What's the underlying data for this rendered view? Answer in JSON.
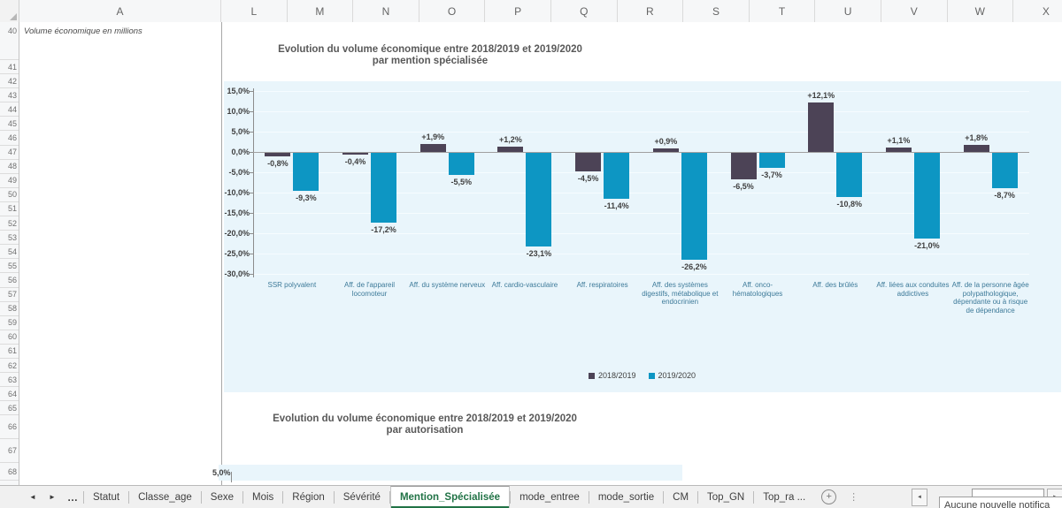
{
  "spreadsheet": {
    "columns": [
      "A",
      "L",
      "M",
      "N",
      "O",
      "P",
      "Q",
      "R",
      "S",
      "T",
      "U",
      "V",
      "W",
      "X"
    ],
    "rows": [
      40,
      41,
      42,
      43,
      44,
      45,
      46,
      47,
      48,
      49,
      50,
      51,
      52,
      53,
      54,
      55,
      56,
      57,
      58,
      59,
      60,
      61,
      62,
      63,
      64,
      65,
      66,
      67,
      68
    ],
    "cell_a40": "Volume économique en millions"
  },
  "chart_data": [
    {
      "type": "bar",
      "title_line1": "Evolution du volume économique entre 2018/2019 et 2019/2020",
      "title_line2": "par mention spécialisée",
      "categories": [
        "SSR polyvalent",
        "Aff. de l'appareil locomoteur",
        "Aff. du système nerveux",
        "Aff. cardio-vasculaire",
        "Aff. respiratoires",
        "Aff. des systèmes digestifs, métabolique et endocrinien",
        "Aff. onco-hématologiques",
        "Aff. des brûlés",
        "Aff. liées aux conduites addictives",
        "Aff. de la personne âgée polypathologique, dépendante ou à risque de dépendance"
      ],
      "series": [
        {
          "name": "2018/2019",
          "color": "#4c4356",
          "values": [
            -0.8,
            -0.4,
            1.9,
            1.2,
            -4.5,
            0.9,
            -6.5,
            12.1,
            1.1,
            1.8
          ],
          "labels": [
            "-0,8%",
            "-0,4%",
            "+1,9%",
            "+1,2%",
            "-4,5%",
            "+0,9%",
            "-6,5%",
            "+12,1%",
            "+1,1%",
            "+1,8%"
          ]
        },
        {
          "name": "2019/2020",
          "color": "#0d96c3",
          "values": [
            -9.3,
            -17.2,
            -5.5,
            -23.1,
            -11.4,
            -26.2,
            -3.7,
            -10.8,
            -21.0,
            -8.7
          ],
          "labels": [
            "-9,3%",
            "-17,2%",
            "-5,5%",
            "-23,1%",
            "-11,4%",
            "-26,2%",
            "-3,7%",
            "-10,8%",
            "-21,0%",
            "-8,7%"
          ]
        }
      ],
      "y_ticks": [
        "15,0%",
        "10,0%",
        "5,0%",
        "0,0%",
        "-5,0%",
        "-10,0%",
        "-15,0%",
        "-20,0%",
        "-25,0%",
        "-30,0%"
      ],
      "ylim": [
        -30,
        15
      ],
      "grid": true,
      "legend": [
        "2018/2019",
        "2019/2020"
      ],
      "legend_position": "bottom",
      "plot_background": "#e9f5fb"
    },
    {
      "type": "bar",
      "title_line1": "Evolution du volume économique entre 2018/2019 et 2019/2020",
      "title_line2": "par autorisation",
      "visible_y_tick": "5,0%"
    }
  ],
  "tabbar": {
    "tabs": [
      {
        "label": "Statut",
        "active": false
      },
      {
        "label": "Classe_age",
        "active": false
      },
      {
        "label": "Sexe",
        "active": false
      },
      {
        "label": "Mois",
        "active": false
      },
      {
        "label": "Région",
        "active": false
      },
      {
        "label": "Sévérité",
        "active": false
      },
      {
        "label": "Mention_Spécialisée",
        "active": true
      },
      {
        "label": "mode_entree",
        "active": false
      },
      {
        "label": "mode_sortie",
        "active": false
      },
      {
        "label": "CM",
        "active": false
      },
      {
        "label": "Top_GN",
        "active": false
      },
      {
        "label": "Top_ra ...",
        "active": false
      }
    ]
  },
  "icons": {
    "back": "◄",
    "forward": "►",
    "overflow": "…",
    "add_sheet": "+",
    "splitter": "⋮",
    "scroll_left": "◄",
    "scroll_right": "►"
  },
  "notification": {
    "text": "Aucune nouvelle notifica"
  }
}
